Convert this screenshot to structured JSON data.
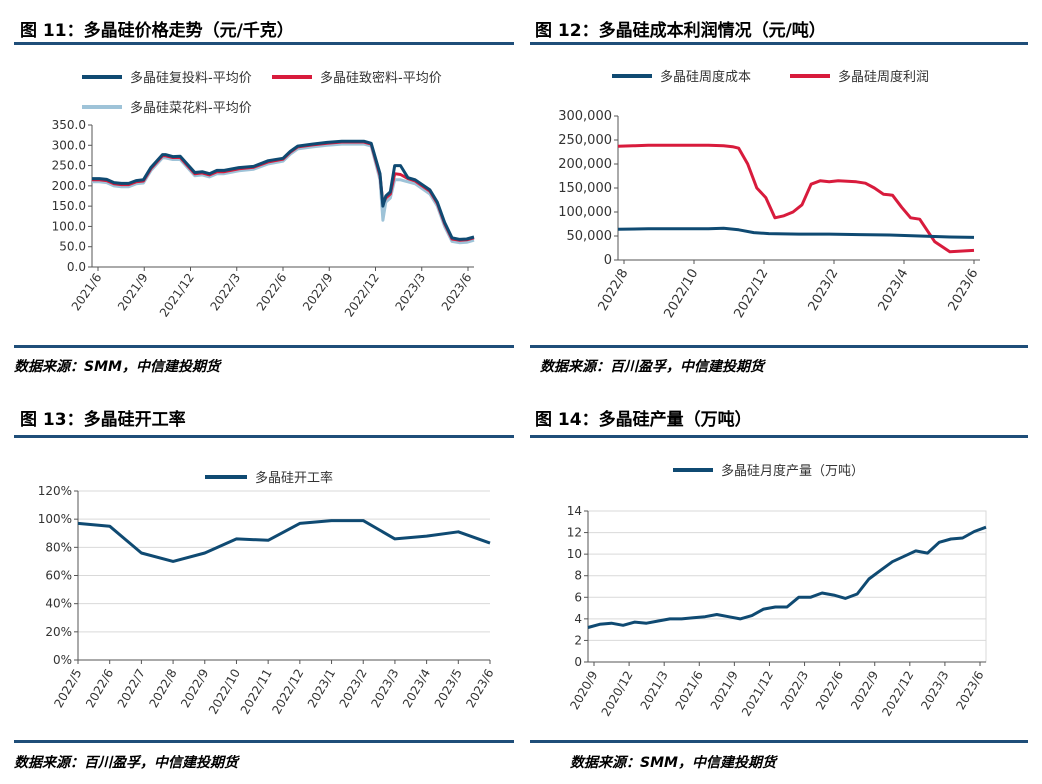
{
  "colors": {
    "navy": "#0f4a72",
    "red": "#d81b3c",
    "lightblue": "#9ec3d8",
    "rule": "#1f4e79"
  },
  "figures": [
    {
      "title": "图 11：多晶硅价格走势（元/千克）",
      "source": "数据来源：SMM，中信建投期货"
    },
    {
      "title": "图 12：多晶硅成本利润情况（元/吨）",
      "source": "数据来源：百川盈孚，中信建投期货"
    },
    {
      "title": "图 13：多晶硅开工率",
      "source": "数据来源：百川盈孚，中信建投期货"
    },
    {
      "title": "图 14：多晶硅产量（万吨）",
      "source": "数据来源：SMM，中信建投期货"
    }
  ],
  "chart_data": [
    {
      "type": "line",
      "title": "多晶硅价格走势（元/千克）",
      "x_labels": [
        "2021/6",
        "2021/9",
        "2021/12",
        "2022/3",
        "2022/6",
        "2022/9",
        "2022/12",
        "2023/3",
        "2023/6"
      ],
      "y_ticks": [
        "0.0",
        "50.0",
        "100.0",
        "150.0",
        "200.0",
        "250.0",
        "300.0",
        "350.0"
      ],
      "ylim": [
        0,
        350
      ],
      "xlim": [
        0,
        26
      ],
      "legend_position": "top",
      "series": [
        {
          "name": "多晶硅复投料-平均价",
          "color": "#0f4a72",
          "x": [
            0,
            0.5,
            1,
            1.5,
            2,
            2.5,
            3,
            3.5,
            4,
            4.8,
            5,
            5.5,
            6,
            7,
            7.5,
            8,
            8.5,
            9,
            10,
            11,
            12,
            13,
            13.5,
            14,
            15,
            16,
            17,
            18,
            18.5,
            19,
            19.6,
            19.8,
            20,
            20.3,
            20.6,
            21,
            21.5,
            22,
            23,
            23.5,
            24,
            24.5,
            25,
            25.5,
            26
          ],
          "y": [
            218,
            218,
            216,
            208,
            206,
            206,
            213,
            215,
            245,
            277,
            277,
            272,
            273,
            233,
            235,
            230,
            238,
            238,
            245,
            248,
            262,
            268,
            285,
            298,
            303,
            307,
            310,
            310,
            310,
            305,
            230,
            150,
            175,
            185,
            250,
            250,
            220,
            215,
            190,
            160,
            110,
            72,
            68,
            69,
            74
          ]
        },
        {
          "name": "多晶硅致密料-平均价",
          "color": "#d81b3c",
          "x": [
            0,
            0.5,
            1,
            1.5,
            2,
            2.5,
            3,
            3.5,
            4,
            4.8,
            5,
            5.5,
            6,
            7,
            7.5,
            8,
            8.5,
            9,
            10,
            11,
            12,
            13,
            13.5,
            14,
            15,
            16,
            17,
            18,
            18.5,
            19,
            19.6,
            19.8,
            20,
            20.3,
            20.6,
            21,
            21.5,
            22,
            23,
            23.5,
            24,
            24.5,
            25,
            25.5,
            26
          ],
          "y": [
            215,
            215,
            213,
            205,
            203,
            203,
            210,
            212,
            242,
            274,
            274,
            270,
            270,
            230,
            232,
            227,
            235,
            235,
            242,
            246,
            259,
            266,
            283,
            296,
            301,
            305,
            308,
            308,
            308,
            303,
            225,
            155,
            170,
            180,
            230,
            228,
            218,
            212,
            187,
            157,
            107,
            69,
            66,
            67,
            72
          ]
        },
        {
          "name": "多晶硅菜花料-平均价",
          "color": "#9ec3d8",
          "x": [
            0,
            0.5,
            1,
            1.5,
            2,
            2.5,
            3,
            3.5,
            4,
            4.8,
            5,
            5.5,
            6,
            7,
            7.5,
            8,
            8.5,
            9,
            10,
            11,
            12,
            13,
            13.5,
            14,
            15,
            16,
            17,
            18,
            18.5,
            19,
            19.6,
            19.8,
            20,
            20.3,
            20.6,
            21,
            21.5,
            22,
            23,
            23.5,
            24,
            24.5,
            25,
            25.5,
            26
          ],
          "y": [
            210,
            210,
            208,
            200,
            198,
            198,
            205,
            207,
            237,
            269,
            269,
            265,
            265,
            225,
            227,
            222,
            230,
            230,
            237,
            241,
            254,
            261,
            278,
            291,
            296,
            300,
            303,
            303,
            303,
            298,
            215,
            115,
            160,
            170,
            215,
            215,
            210,
            205,
            180,
            150,
            100,
            63,
            60,
            61,
            66
          ]
        }
      ]
    },
    {
      "type": "line",
      "title": "多晶硅成本利润情况（元/吨）",
      "x_labels": [
        "2022/8",
        "2022/10",
        "2022/12",
        "2023/2",
        "2023/4",
        "2023/6"
      ],
      "y_ticks": [
        "0",
        "50,000",
        "100,000",
        "150,000",
        "200,000",
        "250,000",
        "300,000"
      ],
      "ylim": [
        0,
        300000
      ],
      "xlim": [
        0,
        12
      ],
      "legend_position": "top",
      "series": [
        {
          "name": "多晶硅周度成本",
          "color": "#0f4a72",
          "x": [
            0,
            1,
            2,
            3,
            3.5,
            4,
            4.5,
            5,
            6,
            7,
            8,
            9,
            10,
            11,
            11.8
          ],
          "y": [
            64000,
            65000,
            65000,
            65000,
            66000,
            63000,
            57000,
            55000,
            54000,
            54000,
            53000,
            52000,
            50000,
            48000,
            47000
          ]
        },
        {
          "name": "多晶硅周度利润",
          "color": "#d81b3c",
          "x": [
            0,
            0.5,
            1,
            2,
            3,
            3.5,
            3.8,
            4,
            4.3,
            4.6,
            4.9,
            5.2,
            5.5,
            5.8,
            6.1,
            6.4,
            6.7,
            7,
            7.3,
            7.6,
            7.9,
            8.2,
            8.5,
            8.8,
            9.1,
            9.4,
            9.7,
            10,
            10.5,
            11,
            11.5,
            11.8
          ],
          "y": [
            237000,
            238000,
            239000,
            239000,
            239000,
            238000,
            236000,
            233000,
            200000,
            150000,
            130000,
            88000,
            92000,
            100000,
            115000,
            158000,
            165000,
            163000,
            165000,
            164000,
            163000,
            160000,
            150000,
            137000,
            135000,
            110000,
            88000,
            85000,
            38000,
            17000,
            19000,
            20000
          ]
        }
      ]
    },
    {
      "type": "line",
      "title": "多晶硅开工率",
      "x_labels": [
        "2022/5",
        "2022/6",
        "2022/7",
        "2022/8",
        "2022/9",
        "2022/10",
        "2022/11",
        "2022/12",
        "2023/1",
        "2023/2",
        "2023/3",
        "2023/4",
        "2023/5",
        "2023/6"
      ],
      "y_ticks": [
        "0%",
        "20%",
        "40%",
        "60%",
        "80%",
        "100%",
        "120%"
      ],
      "ylim": [
        0,
        120
      ],
      "legend_position": "top",
      "series": [
        {
          "name": "多晶硅开工率",
          "color": "#0f4a72",
          "values": [
            97,
            95,
            76,
            70,
            76,
            86,
            85,
            97,
            99,
            99,
            86,
            88,
            91,
            83
          ]
        }
      ]
    },
    {
      "type": "line",
      "title": "多晶硅产量（万吨）",
      "x_labels": [
        "2020/9",
        "2020/12",
        "2021/3",
        "2021/6",
        "2021/9",
        "2021/12",
        "2022/3",
        "2022/6",
        "2022/9",
        "2022/12",
        "2023/3",
        "2023/6"
      ],
      "y_ticks": [
        "0",
        "2",
        "4",
        "6",
        "8",
        "10",
        "12",
        "14"
      ],
      "ylim": [
        0,
        14
      ],
      "legend_position": "top",
      "series": [
        {
          "name": "多晶硅月度产量（万吨）",
          "color": "#0f4a72",
          "values": [
            3.2,
            3.5,
            3.6,
            3.4,
            3.7,
            3.6,
            3.8,
            4.0,
            4.0,
            4.1,
            4.2,
            4.4,
            4.2,
            4.0,
            4.3,
            4.9,
            5.1,
            5.1,
            6.0,
            6.0,
            6.4,
            6.2,
            5.9,
            6.3,
            7.7,
            8.5,
            9.3,
            9.8,
            10.3,
            10.1,
            11.1,
            11.4,
            11.5,
            12.1,
            12.5
          ]
        }
      ]
    }
  ]
}
